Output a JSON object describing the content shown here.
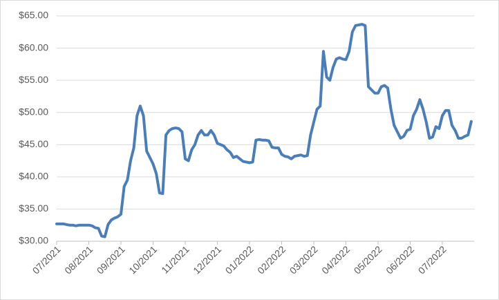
{
  "chart_data": {
    "type": "line",
    "categories": [
      "07/2021",
      null,
      null,
      null,
      null,
      null,
      null,
      null,
      null,
      null,
      "08/2021",
      null,
      null,
      null,
      null,
      null,
      null,
      null,
      null,
      null,
      "09/2021",
      null,
      null,
      null,
      null,
      null,
      null,
      null,
      null,
      null,
      "10/2021",
      null,
      null,
      null,
      null,
      null,
      null,
      null,
      null,
      null,
      "11/2021",
      null,
      null,
      null,
      null,
      null,
      null,
      null,
      null,
      null,
      "12/2021",
      null,
      null,
      null,
      null,
      null,
      null,
      null,
      null,
      null,
      "01/2022",
      null,
      null,
      null,
      null,
      null,
      null,
      null,
      null,
      null,
      "02/2022",
      null,
      null,
      null,
      null,
      null,
      null,
      null,
      null,
      null,
      "03/2022",
      null,
      null,
      null,
      null,
      null,
      null,
      null,
      null,
      null,
      "04/2022",
      null,
      null,
      null,
      null,
      null,
      null,
      null,
      null,
      null,
      "05/2022",
      null,
      null,
      null,
      null,
      null,
      null,
      null,
      null,
      null,
      "06/2022",
      null,
      null,
      null,
      null,
      null,
      null,
      null,
      null,
      null,
      "07/2022",
      null,
      null,
      null,
      null,
      null,
      null,
      null,
      null,
      null
    ],
    "values": [
      32.7,
      32.7,
      32.7,
      32.6,
      32.5,
      32.5,
      32.4,
      32.5,
      32.5,
      32.5,
      32.5,
      32.4,
      32.1,
      32.0,
      30.8,
      30.7,
      32.6,
      33.3,
      33.6,
      33.8,
      34.2,
      38.5,
      39.5,
      42.5,
      44.5,
      49.5,
      51.0,
      49.5,
      44.0,
      43.0,
      42.0,
      40.5,
      37.5,
      37.4,
      46.5,
      47.2,
      47.5,
      47.6,
      47.5,
      47.0,
      42.8,
      42.5,
      44.2,
      45.0,
      46.5,
      47.2,
      46.5,
      46.5,
      47.2,
      46.5,
      45.2,
      45.0,
      44.8,
      44.2,
      43.8,
      43.0,
      43.2,
      42.8,
      42.4,
      42.3,
      42.2,
      42.3,
      45.7,
      45.8,
      45.7,
      45.7,
      45.6,
      44.6,
      44.5,
      44.5,
      43.5,
      43.2,
      43.1,
      42.8,
      43.2,
      43.3,
      43.4,
      43.2,
      43.3,
      46.5,
      48.5,
      50.5,
      51.0,
      59.5,
      55.5,
      55.0,
      57.0,
      58.3,
      58.5,
      58.3,
      58.2,
      59.5,
      62.5,
      63.5,
      63.6,
      63.7,
      63.5,
      54.0,
      53.5,
      53.0,
      53.0,
      54.0,
      54.2,
      53.8,
      50.5,
      48.0,
      47.0,
      46.0,
      46.3,
      47.2,
      47.4,
      49.5,
      50.5,
      52.0,
      50.5,
      48.5,
      46.0,
      46.2,
      47.8,
      47.5,
      49.5,
      50.3,
      50.3,
      48.0,
      47.2,
      46.0,
      46.0,
      46.3,
      46.5,
      48.6
    ],
    "color": "#4a7ebb",
    "ylim": [
      30,
      65
    ],
    "yticks": [
      {
        "value": 30,
        "label": "$30.00"
      },
      {
        "value": 35,
        "label": "$35.00"
      },
      {
        "value": 40,
        "label": "$40.00"
      },
      {
        "value": 45,
        "label": "$45.00"
      },
      {
        "value": 50,
        "label": "$50.00"
      },
      {
        "value": 55,
        "label": "$55.00"
      },
      {
        "value": 60,
        "label": "$60.00"
      },
      {
        "value": 65,
        "label": "$65.00"
      }
    ],
    "grid": true
  }
}
